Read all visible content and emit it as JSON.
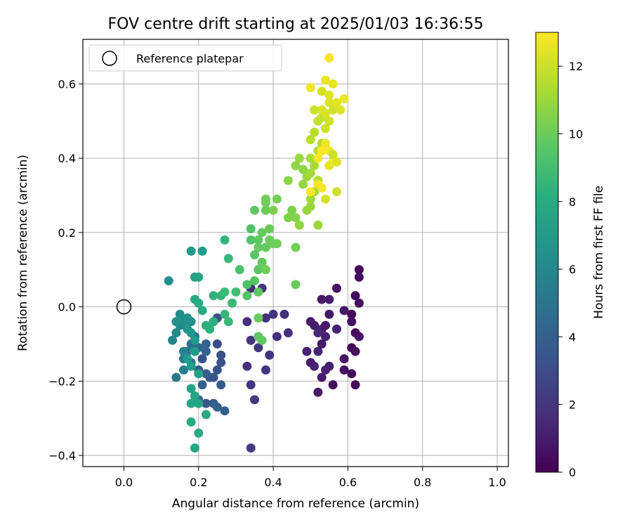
{
  "chart_data": {
    "type": "scatter",
    "title": "FOV centre drift starting at 2025/01/03 16:36:55",
    "xlabel": "Angular distance from reference (arcmin)",
    "ylabel": "Rotation from reference (arcmin)",
    "xlim": [
      -0.11,
      1.03
    ],
    "ylim": [
      -0.43,
      0.72
    ],
    "xticks": [
      0.0,
      0.2,
      0.4,
      0.6,
      0.8,
      1.0
    ],
    "xtick_labels": [
      "0.0",
      "0.2",
      "0.4",
      "0.6",
      "0.8",
      "1.0"
    ],
    "yticks": [
      -0.4,
      -0.2,
      0.0,
      0.2,
      0.4,
      0.6
    ],
    "ytick_labels": [
      "−0.4",
      "−0.2",
      "0.0",
      "0.2",
      "0.4",
      "0.6"
    ],
    "grid": true,
    "legend": {
      "placement": "top-left",
      "entries": [
        "Reference platepar"
      ]
    },
    "reference_point": {
      "x": 0.0,
      "y": 0.0
    },
    "colorbar": {
      "label": "Hours from first FF file",
      "min": 0,
      "max": 13,
      "ticks": [
        0,
        2,
        4,
        6,
        8,
        10,
        12
      ],
      "tick_labels": [
        "0",
        "2",
        "4",
        "6",
        "8",
        "10",
        "12"
      ],
      "colormap": "viridis"
    },
    "points": [
      [
        0.63,
        0.1,
        0.2
      ],
      [
        0.63,
        0.08,
        0.4
      ],
      [
        0.62,
        0.03,
        0.3
      ],
      [
        0.63,
        0.01,
        0.5
      ],
      [
        0.57,
        0.05,
        0.6
      ],
      [
        0.59,
        -0.01,
        0.8
      ],
      [
        0.61,
        -0.02,
        0.3
      ],
      [
        0.61,
        -0.04,
        0.5
      ],
      [
        0.62,
        -0.07,
        0.4
      ],
      [
        0.63,
        -0.08,
        0.6
      ],
      [
        0.61,
        -0.11,
        0.2
      ],
      [
        0.62,
        -0.12,
        0.5
      ],
      [
        0.59,
        -0.14,
        0.7
      ],
      [
        0.59,
        -0.17,
        0.6
      ],
      [
        0.61,
        -0.18,
        0.4
      ],
      [
        0.56,
        -0.21,
        0.5
      ],
      [
        0.62,
        -0.21,
        0.3
      ],
      [
        0.52,
        -0.23,
        0.9
      ],
      [
        0.53,
        -0.19,
        1.0
      ],
      [
        0.54,
        -0.17,
        1.2
      ],
      [
        0.55,
        -0.16,
        1.1
      ],
      [
        0.51,
        -0.16,
        1.3
      ],
      [
        0.5,
        -0.15,
        1.0
      ],
      [
        0.49,
        -0.12,
        1.2
      ],
      [
        0.52,
        -0.12,
        1.4
      ],
      [
        0.53,
        -0.1,
        1.0
      ],
      [
        0.54,
        -0.08,
        1.2
      ],
      [
        0.53,
        -0.06,
        1.3
      ],
      [
        0.51,
        -0.05,
        1.1
      ],
      [
        0.5,
        -0.04,
        1.0
      ],
      [
        0.52,
        -0.07,
        1.5
      ],
      [
        0.54,
        -0.05,
        0.9
      ],
      [
        0.55,
        -0.02,
        0.8
      ],
      [
        0.53,
        0.02,
        0.9
      ],
      [
        0.55,
        0.02,
        1.0
      ],
      [
        0.57,
        -0.06,
        1.2
      ],
      [
        0.44,
        -0.07,
        1.8
      ],
      [
        0.43,
        -0.02,
        1.9
      ],
      [
        0.4,
        -0.02,
        2.0
      ],
      [
        0.38,
        -0.03,
        1.9
      ],
      [
        0.41,
        -0.08,
        1.8
      ],
      [
        0.39,
        -0.13,
        2.0
      ],
      [
        0.38,
        -0.17,
        2.1
      ],
      [
        0.36,
        -0.11,
        2.2
      ],
      [
        0.34,
        -0.09,
        2.0
      ],
      [
        0.33,
        -0.16,
        1.9
      ],
      [
        0.34,
        -0.21,
        2.1
      ],
      [
        0.35,
        -0.25,
        2.3
      ],
      [
        0.34,
        -0.38,
        2.4
      ],
      [
        0.33,
        -0.04,
        1.8
      ],
      [
        0.34,
        0.05,
        1.7
      ],
      [
        0.37,
        0.05,
        1.9
      ],
      [
        0.25,
        -0.1,
        3.0
      ],
      [
        0.26,
        -0.15,
        3.2
      ],
      [
        0.25,
        -0.17,
        3.4
      ],
      [
        0.24,
        -0.19,
        3.3
      ],
      [
        0.26,
        -0.21,
        3.6
      ],
      [
        0.23,
        -0.19,
        3.5
      ],
      [
        0.22,
        -0.18,
        3.8
      ],
      [
        0.21,
        -0.14,
        3.4
      ],
      [
        0.2,
        -0.17,
        3.7
      ],
      [
        0.21,
        -0.21,
        3.9
      ],
      [
        0.2,
        -0.25,
        4.0
      ],
      [
        0.22,
        -0.26,
        3.6
      ],
      [
        0.24,
        -0.26,
        3.8
      ],
      [
        0.25,
        -0.27,
        4.1
      ],
      [
        0.27,
        -0.28,
        3.9
      ],
      [
        0.26,
        -0.13,
        3.3
      ],
      [
        0.25,
        -0.03,
        3.2
      ],
      [
        0.24,
        -0.04,
        3.5
      ],
      [
        0.22,
        -0.1,
        4.2
      ],
      [
        0.22,
        -0.12,
        4.0
      ],
      [
        0.2,
        -0.11,
        4.4
      ],
      [
        0.19,
        -0.08,
        4.6
      ],
      [
        0.18,
        -0.1,
        4.8
      ],
      [
        0.17,
        -0.12,
        5.0
      ],
      [
        0.16,
        -0.14,
        5.2
      ],
      [
        0.18,
        -0.15,
        5.3
      ],
      [
        0.16,
        -0.17,
        5.5
      ],
      [
        0.14,
        -0.19,
        5.4
      ],
      [
        0.16,
        -0.12,
        5.8
      ],
      [
        0.13,
        -0.09,
        6.0
      ],
      [
        0.14,
        -0.07,
        6.2
      ],
      [
        0.15,
        -0.05,
        6.1
      ],
      [
        0.16,
        -0.04,
        6.3
      ],
      [
        0.14,
        -0.04,
        6.5
      ],
      [
        0.15,
        -0.02,
        6.4
      ],
      [
        0.17,
        -0.03,
        6.6
      ],
      [
        0.18,
        -0.04,
        6.5
      ],
      [
        0.17,
        -0.06,
        6.8
      ],
      [
        0.18,
        -0.07,
        6.9
      ],
      [
        0.19,
        -0.09,
        7.0
      ],
      [
        0.19,
        -0.12,
        7.1
      ],
      [
        0.17,
        -0.14,
        7.2
      ],
      [
        0.18,
        -0.16,
        7.3
      ],
      [
        0.2,
        -0.18,
        7.4
      ],
      [
        0.18,
        -0.22,
        7.5
      ],
      [
        0.19,
        -0.24,
        7.6
      ],
      [
        0.18,
        -0.26,
        7.7
      ],
      [
        0.2,
        -0.26,
        7.6
      ],
      [
        0.22,
        -0.29,
        7.8
      ],
      [
        0.18,
        -0.31,
        7.9
      ],
      [
        0.2,
        -0.34,
        7.8
      ],
      [
        0.19,
        -0.38,
        7.7
      ],
      [
        0.12,
        0.07,
        6.4
      ],
      [
        0.18,
        0.15,
        7.0
      ],
      [
        0.21,
        0.15,
        7.2
      ],
      [
        0.19,
        0.08,
        7.4
      ],
      [
        0.2,
        0.08,
        7.6
      ],
      [
        0.19,
        0.02,
        7.8
      ],
      [
        0.2,
        0.01,
        8.0
      ],
      [
        0.21,
        -0.01,
        7.9
      ],
      [
        0.22,
        -0.05,
        8.1
      ],
      [
        0.24,
        -0.04,
        8.2
      ],
      [
        0.23,
        -0.06,
        8.3
      ],
      [
        0.24,
        0.03,
        8.4
      ],
      [
        0.26,
        0.03,
        8.5
      ],
      [
        0.27,
        -0.02,
        8.6
      ],
      [
        0.28,
        -0.04,
        8.7
      ],
      [
        0.29,
        0.01,
        8.8
      ],
      [
        0.27,
        0.04,
        8.9
      ],
      [
        0.3,
        0.04,
        9.0
      ],
      [
        0.28,
        0.13,
        8.7
      ],
      [
        0.27,
        0.18,
        8.5
      ],
      [
        0.31,
        0.1,
        9.2
      ],
      [
        0.33,
        0.03,
        9.4
      ],
      [
        0.33,
        0.06,
        9.3
      ],
      [
        0.35,
        0.07,
        9.5
      ],
      [
        0.36,
        0.1,
        9.6
      ],
      [
        0.36,
        0.04,
        9.7
      ],
      [
        0.37,
        0.12,
        9.8
      ],
      [
        0.35,
        0.14,
        9.6
      ],
      [
        0.36,
        0.16,
        9.9
      ],
      [
        0.36,
        0.18,
        9.7
      ],
      [
        0.38,
        0.16,
        9.8
      ],
      [
        0.37,
        0.2,
        9.9
      ],
      [
        0.39,
        0.18,
        10.0
      ],
      [
        0.4,
        0.17,
        10.1
      ],
      [
        0.41,
        0.17,
        10.2
      ],
      [
        0.39,
        0.21,
        10.0
      ],
      [
        0.34,
        0.21,
        9.4
      ],
      [
        0.34,
        0.18,
        9.5
      ],
      [
        0.38,
        0.1,
        10.1
      ],
      [
        0.36,
        -0.03,
        10.0
      ],
      [
        0.37,
        -0.09,
        9.8
      ],
      [
        0.36,
        -0.08,
        9.7
      ],
      [
        0.35,
        0.26,
        9.8
      ],
      [
        0.38,
        0.26,
        10.0
      ],
      [
        0.38,
        0.28,
        10.1
      ],
      [
        0.38,
        0.29,
        10.2
      ],
      [
        0.41,
        0.29,
        10.3
      ],
      [
        0.4,
        0.26,
        10.4
      ],
      [
        0.44,
        0.24,
        10.5
      ],
      [
        0.46,
        0.24,
        10.6
      ],
      [
        0.45,
        0.26,
        10.4
      ],
      [
        0.47,
        0.22,
        10.8
      ],
      [
        0.46,
        0.16,
        10.2
      ],
      [
        0.46,
        0.06,
        10.0
      ],
      [
        0.49,
        0.26,
        10.9
      ],
      [
        0.5,
        0.27,
        11.0
      ],
      [
        0.5,
        0.29,
        11.1
      ],
      [
        0.52,
        0.22,
        11.0
      ],
      [
        0.51,
        0.31,
        11.2
      ],
      [
        0.48,
        0.33,
        10.9
      ],
      [
        0.49,
        0.35,
        11.1
      ],
      [
        0.5,
        0.36,
        11.2
      ],
      [
        0.51,
        0.38,
        11.3
      ],
      [
        0.52,
        0.34,
        11.4
      ],
      [
        0.48,
        0.37,
        10.8
      ],
      [
        0.47,
        0.4,
        11.0
      ],
      [
        0.44,
        0.34,
        10.7
      ],
      [
        0.46,
        0.38,
        10.8
      ],
      [
        0.5,
        0.4,
        11.3
      ],
      [
        0.52,
        0.42,
        11.5
      ],
      [
        0.53,
        0.44,
        11.6
      ],
      [
        0.5,
        0.45,
        11.7
      ],
      [
        0.51,
        0.47,
        11.6
      ],
      [
        0.52,
        0.5,
        11.8
      ],
      [
        0.53,
        0.51,
        11.9
      ],
      [
        0.54,
        0.48,
        12.0
      ],
      [
        0.55,
        0.5,
        12.1
      ],
      [
        0.54,
        0.52,
        12.2
      ],
      [
        0.56,
        0.53,
        12.1
      ],
      [
        0.55,
        0.55,
        12.3
      ],
      [
        0.53,
        0.58,
        12.2
      ],
      [
        0.55,
        0.57,
        12.4
      ],
      [
        0.57,
        0.55,
        12.5
      ],
      [
        0.58,
        0.53,
        12.4
      ],
      [
        0.59,
        0.56,
        12.6
      ],
      [
        0.56,
        0.6,
        12.5
      ],
      [
        0.54,
        0.61,
        12.6
      ],
      [
        0.5,
        0.59,
        12.7
      ],
      [
        0.55,
        0.67,
        12.8
      ],
      [
        0.53,
        0.53,
        12.3
      ],
      [
        0.51,
        0.53,
        12.0
      ],
      [
        0.54,
        0.44,
        12.7
      ],
      [
        0.55,
        0.42,
        12.8
      ],
      [
        0.56,
        0.39,
        12.9
      ],
      [
        0.57,
        0.39,
        12.4
      ],
      [
        0.55,
        0.38,
        12.6
      ],
      [
        0.53,
        0.32,
        12.8
      ],
      [
        0.52,
        0.33,
        12.9
      ],
      [
        0.5,
        0.31,
        13.0
      ],
      [
        0.54,
        0.29,
        12.2
      ],
      [
        0.57,
        0.31,
        12.1
      ],
      [
        0.56,
        0.41,
        12.0
      ],
      [
        0.52,
        0.4,
        12.9
      ],
      [
        0.53,
        0.42,
        13.0
      ]
    ]
  }
}
